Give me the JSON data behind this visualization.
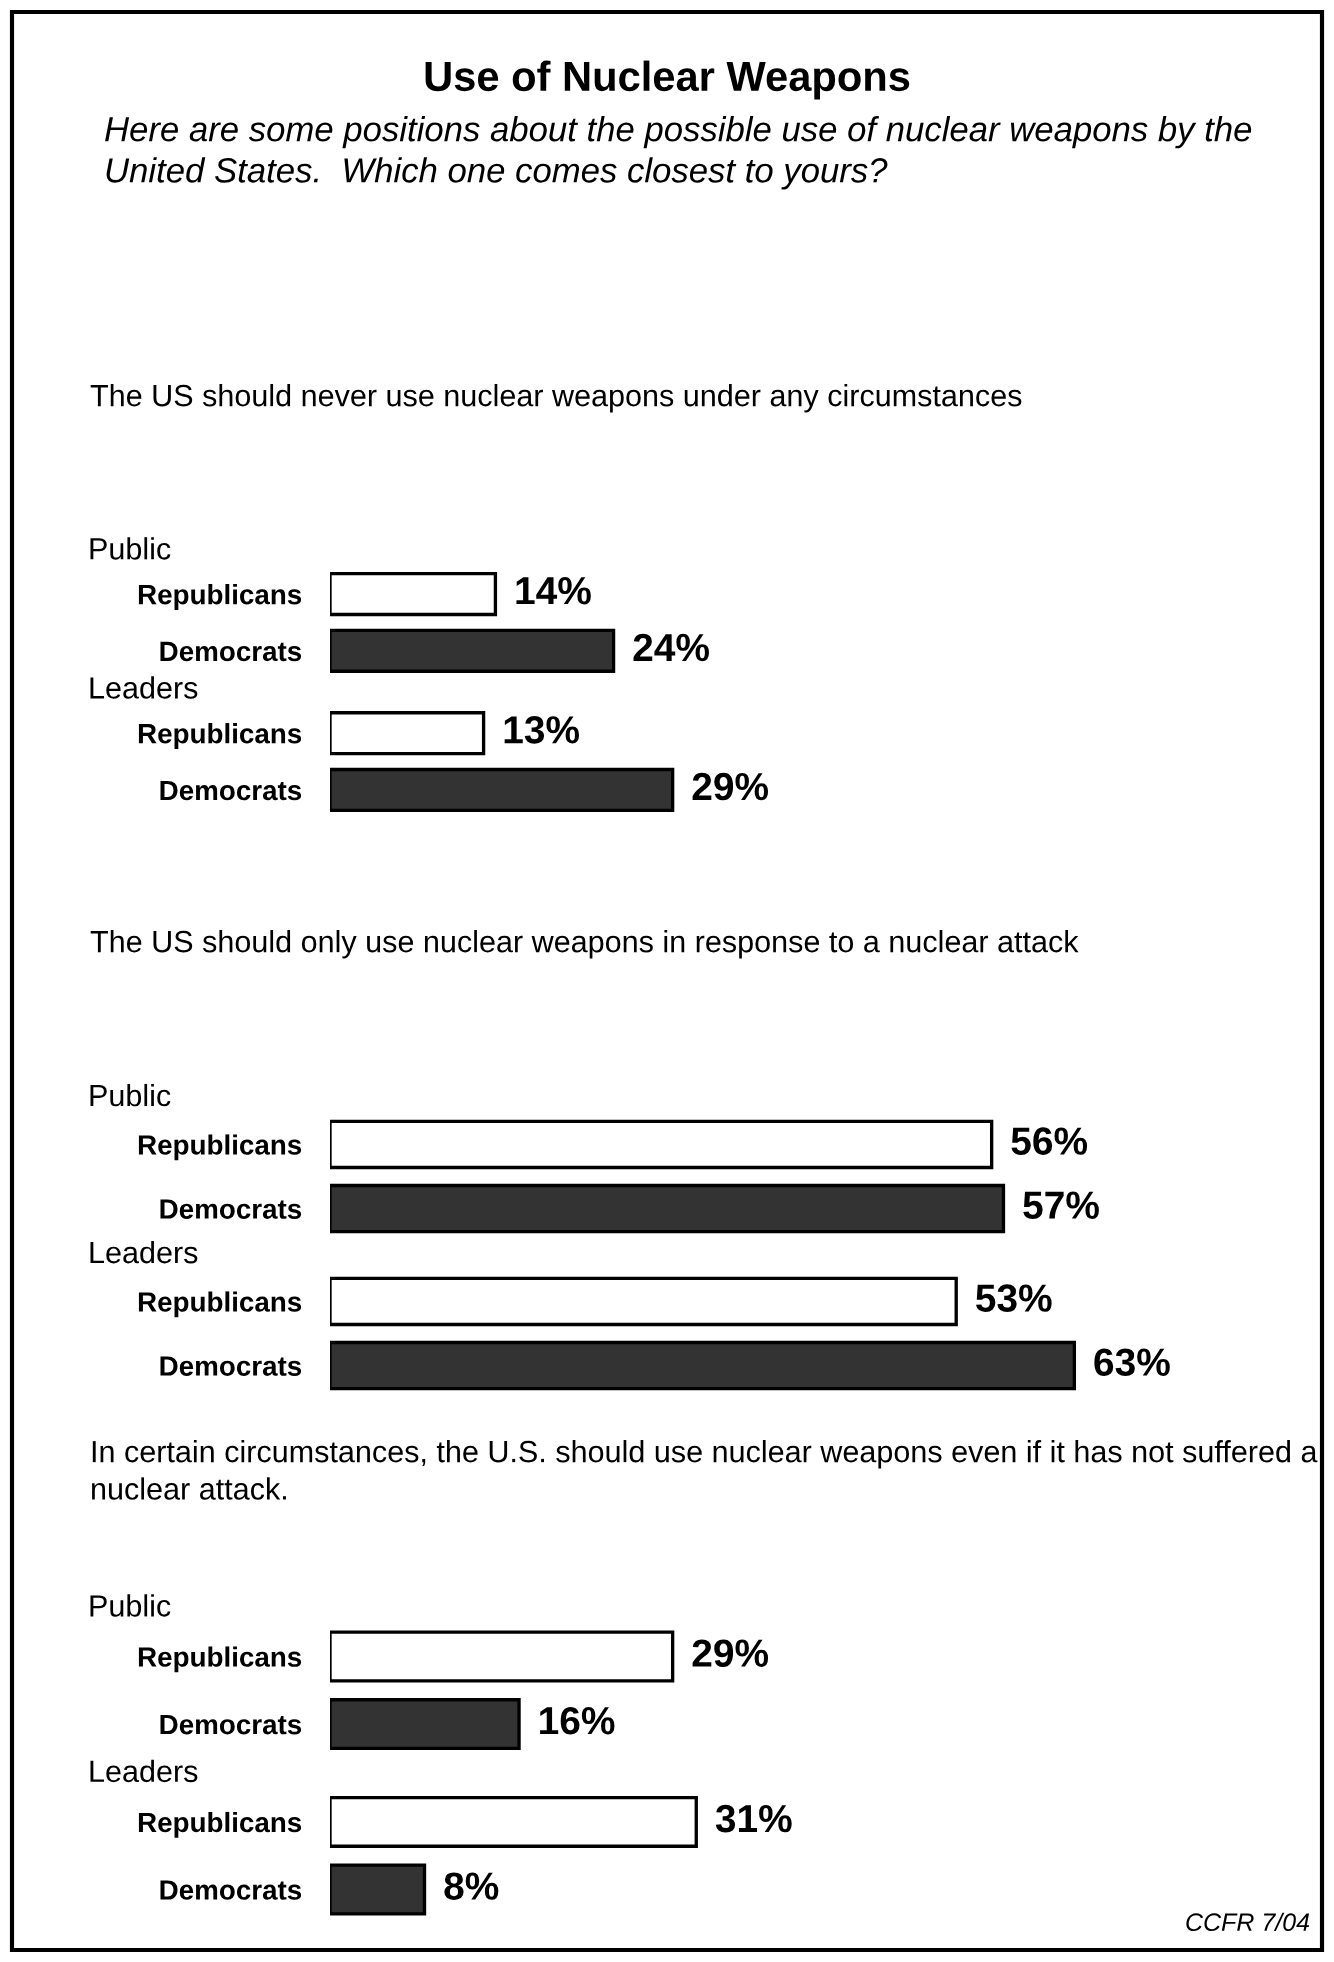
{
  "chart_data": [
    {
      "type": "bar",
      "orientation": "horizontal",
      "title": "Use of Nuclear Weapons",
      "subtitle": "Here are some positions about the possible use of nuclear weapons by the United States.  Which one comes closest to yours?",
      "annotations": [
        "The US should never use nuclear weapons under any circumstances",
        "Public",
        "Leaders"
      ],
      "categories": [
        "Republicans",
        "Democrats",
        "Republicans",
        "Democrats"
      ],
      "values": [
        14,
        24,
        13,
        29
      ],
      "colors": [
        "#ffffff",
        "#333333",
        "#ffffff",
        "#333333"
      ],
      "value_labels": [
        "14%",
        "24%",
        "13%",
        "29%"
      ],
      "tick_labels": "y"
    },
    {
      "type": "bar",
      "orientation": "horizontal",
      "title": "The US should only use nuclear weapons in response to a nuclear attack",
      "annotations": [
        "Public",
        "Leaders"
      ],
      "categories": [
        "Republicans",
        "Democrats",
        "Republicans",
        "Democrats"
      ],
      "values": [
        56,
        57,
        53,
        63
      ],
      "colors": [
        "#ffffff",
        "#333333",
        "#ffffff",
        "#333333"
      ],
      "value_labels": [
        "56%",
        "57%",
        "53%",
        "63%"
      ],
      "tick_labels": "y"
    },
    {
      "type": "bar",
      "orientation": "horizontal",
      "title": "In certain circumstances, the U.S. should use nuclear weapons even if it has not suffered a nuclear attack.",
      "annotations": [
        "Public",
        "Leaders",
        "CCFR 7/04"
      ],
      "categories": [
        "Republicans",
        "Democrats",
        "Republicans",
        "Democrats"
      ],
      "values": [
        29,
        16,
        31,
        8
      ],
      "colors": [
        "#ffffff",
        "#333333",
        "#ffffff",
        "#333333"
      ],
      "value_labels": [
        "29%",
        "16%",
        "31%",
        "8%"
      ],
      "tick_labels": "y"
    }
  ]
}
